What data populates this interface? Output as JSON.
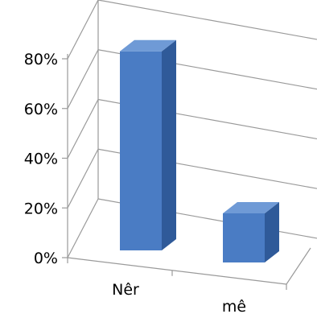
{
  "chart_data": {
    "type": "bar",
    "categories": [
      "Nêr",
      "mê"
    ],
    "values": [
      77,
      19
    ],
    "y_tick_labels": [
      "0%",
      "20%",
      "40%",
      "60%",
      "80%"
    ],
    "ylim": [
      0,
      80
    ],
    "grid": true,
    "bar_color": "#4a7cc4",
    "bar_side_color": "#2f5a99",
    "bar_top_color": "#6f9ad6"
  }
}
